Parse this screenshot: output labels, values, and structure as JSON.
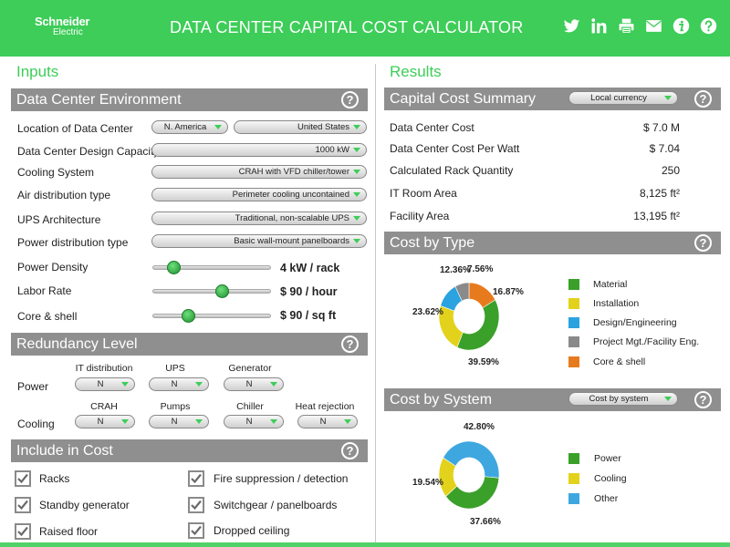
{
  "header": {
    "logo_line1": "Schneider",
    "logo_line2": "Electric",
    "title": "DATA CENTER CAPITAL COST CALCULATOR",
    "icons": [
      "twitter-icon",
      "linkedin-icon",
      "print-icon",
      "email-icon",
      "info-icon",
      "help-icon"
    ]
  },
  "inputs": {
    "title": "Inputs",
    "environment": {
      "title": "Data Center Environment",
      "location_label": "Location of Data Center",
      "region": "N. America",
      "country": "United States",
      "capacity_label": "Data Center Design Capacity",
      "capacity": "1000 kW",
      "cooling_label": "Cooling System",
      "cooling": "CRAH with VFD chiller/tower",
      "airdist_label": "Air distribution type",
      "airdist": "Perimeter cooling uncontained",
      "ups_label": "UPS Architecture",
      "ups": "Traditional, non-scalable UPS",
      "powerdist_label": "Power distribution type",
      "powerdist": "Basic wall-mount panelboards",
      "density_label": "Power Density",
      "density_value": "4 kW / rack",
      "density_level": 0.13,
      "labor_label": "Labor Rate",
      "labor_value": "$ 90 / hour",
      "labor_level": 0.6,
      "shell_label": "Core & shell",
      "shell_value": "$ 90 / sq ft",
      "shell_level": 0.27
    },
    "redundancy": {
      "title": "Redundancy Level",
      "power_label": "Power",
      "cooling_label": "Cooling",
      "power_cols": [
        "IT distribution",
        "UPS",
        "Generator"
      ],
      "power_values": [
        "N",
        "N",
        "N"
      ],
      "cooling_cols": [
        "CRAH",
        "Pumps",
        "Chiller",
        "Heat rejection"
      ],
      "cooling_values": [
        "N",
        "N",
        "N",
        "N"
      ]
    },
    "include": {
      "title": "Include in Cost",
      "items": [
        {
          "label": "Racks",
          "checked": true
        },
        {
          "label": "Fire suppression / detection",
          "checked": true
        },
        {
          "label": "Standby generator",
          "checked": true
        },
        {
          "label": "Switchgear / panelboards",
          "checked": true
        },
        {
          "label": "Raised floor",
          "checked": true
        },
        {
          "label": "Dropped ceiling",
          "checked": true
        }
      ]
    }
  },
  "results": {
    "title": "Results",
    "summary": {
      "title": "Capital Cost Summary",
      "currency": "Local currency",
      "rows": [
        {
          "label": "Data Center Cost",
          "value": "$ 7.0 M"
        },
        {
          "label": "Data Center Cost Per Watt",
          "value": "$ 7.04"
        },
        {
          "label": "Calculated Rack Quantity",
          "value": "250"
        },
        {
          "label": "IT Room Area",
          "value": "8,125 ft²"
        },
        {
          "label": "Facility Area",
          "value": "13,195 ft²"
        }
      ]
    },
    "by_type": {
      "title": "Cost by Type",
      "legend": [
        "Material",
        "Installation",
        "Design/Engineering",
        "Project Mgt./Facility Eng.",
        "Core & shell"
      ],
      "colors": [
        "#3aa02a",
        "#e3d21b",
        "#2aa3e0",
        "#8a8a8a",
        "#e87a1e"
      ],
      "labels": [
        "39.59%",
        "23.62%",
        "12.36%",
        "7.56%",
        "16.87%"
      ]
    },
    "by_system": {
      "title": "Cost by System",
      "dropdown": "Cost by system",
      "legend": [
        "Power",
        "Cooling",
        "Other"
      ],
      "colors": [
        "#3aa02a",
        "#e3d21b",
        "#3ea7e0"
      ],
      "labels": [
        "37.66%",
        "19.54%",
        "42.80%"
      ]
    }
  },
  "chart_data": [
    {
      "type": "pie",
      "title": "Cost by Type",
      "categories": [
        "Material",
        "Installation",
        "Design/Engineering",
        "Project Mgt./Facility Eng.",
        "Core & shell"
      ],
      "values": [
        39.59,
        23.62,
        12.36,
        7.56,
        16.87
      ]
    },
    {
      "type": "pie",
      "title": "Cost by System",
      "categories": [
        "Power",
        "Cooling",
        "Other"
      ],
      "values": [
        37.66,
        19.54,
        42.8
      ]
    }
  ]
}
